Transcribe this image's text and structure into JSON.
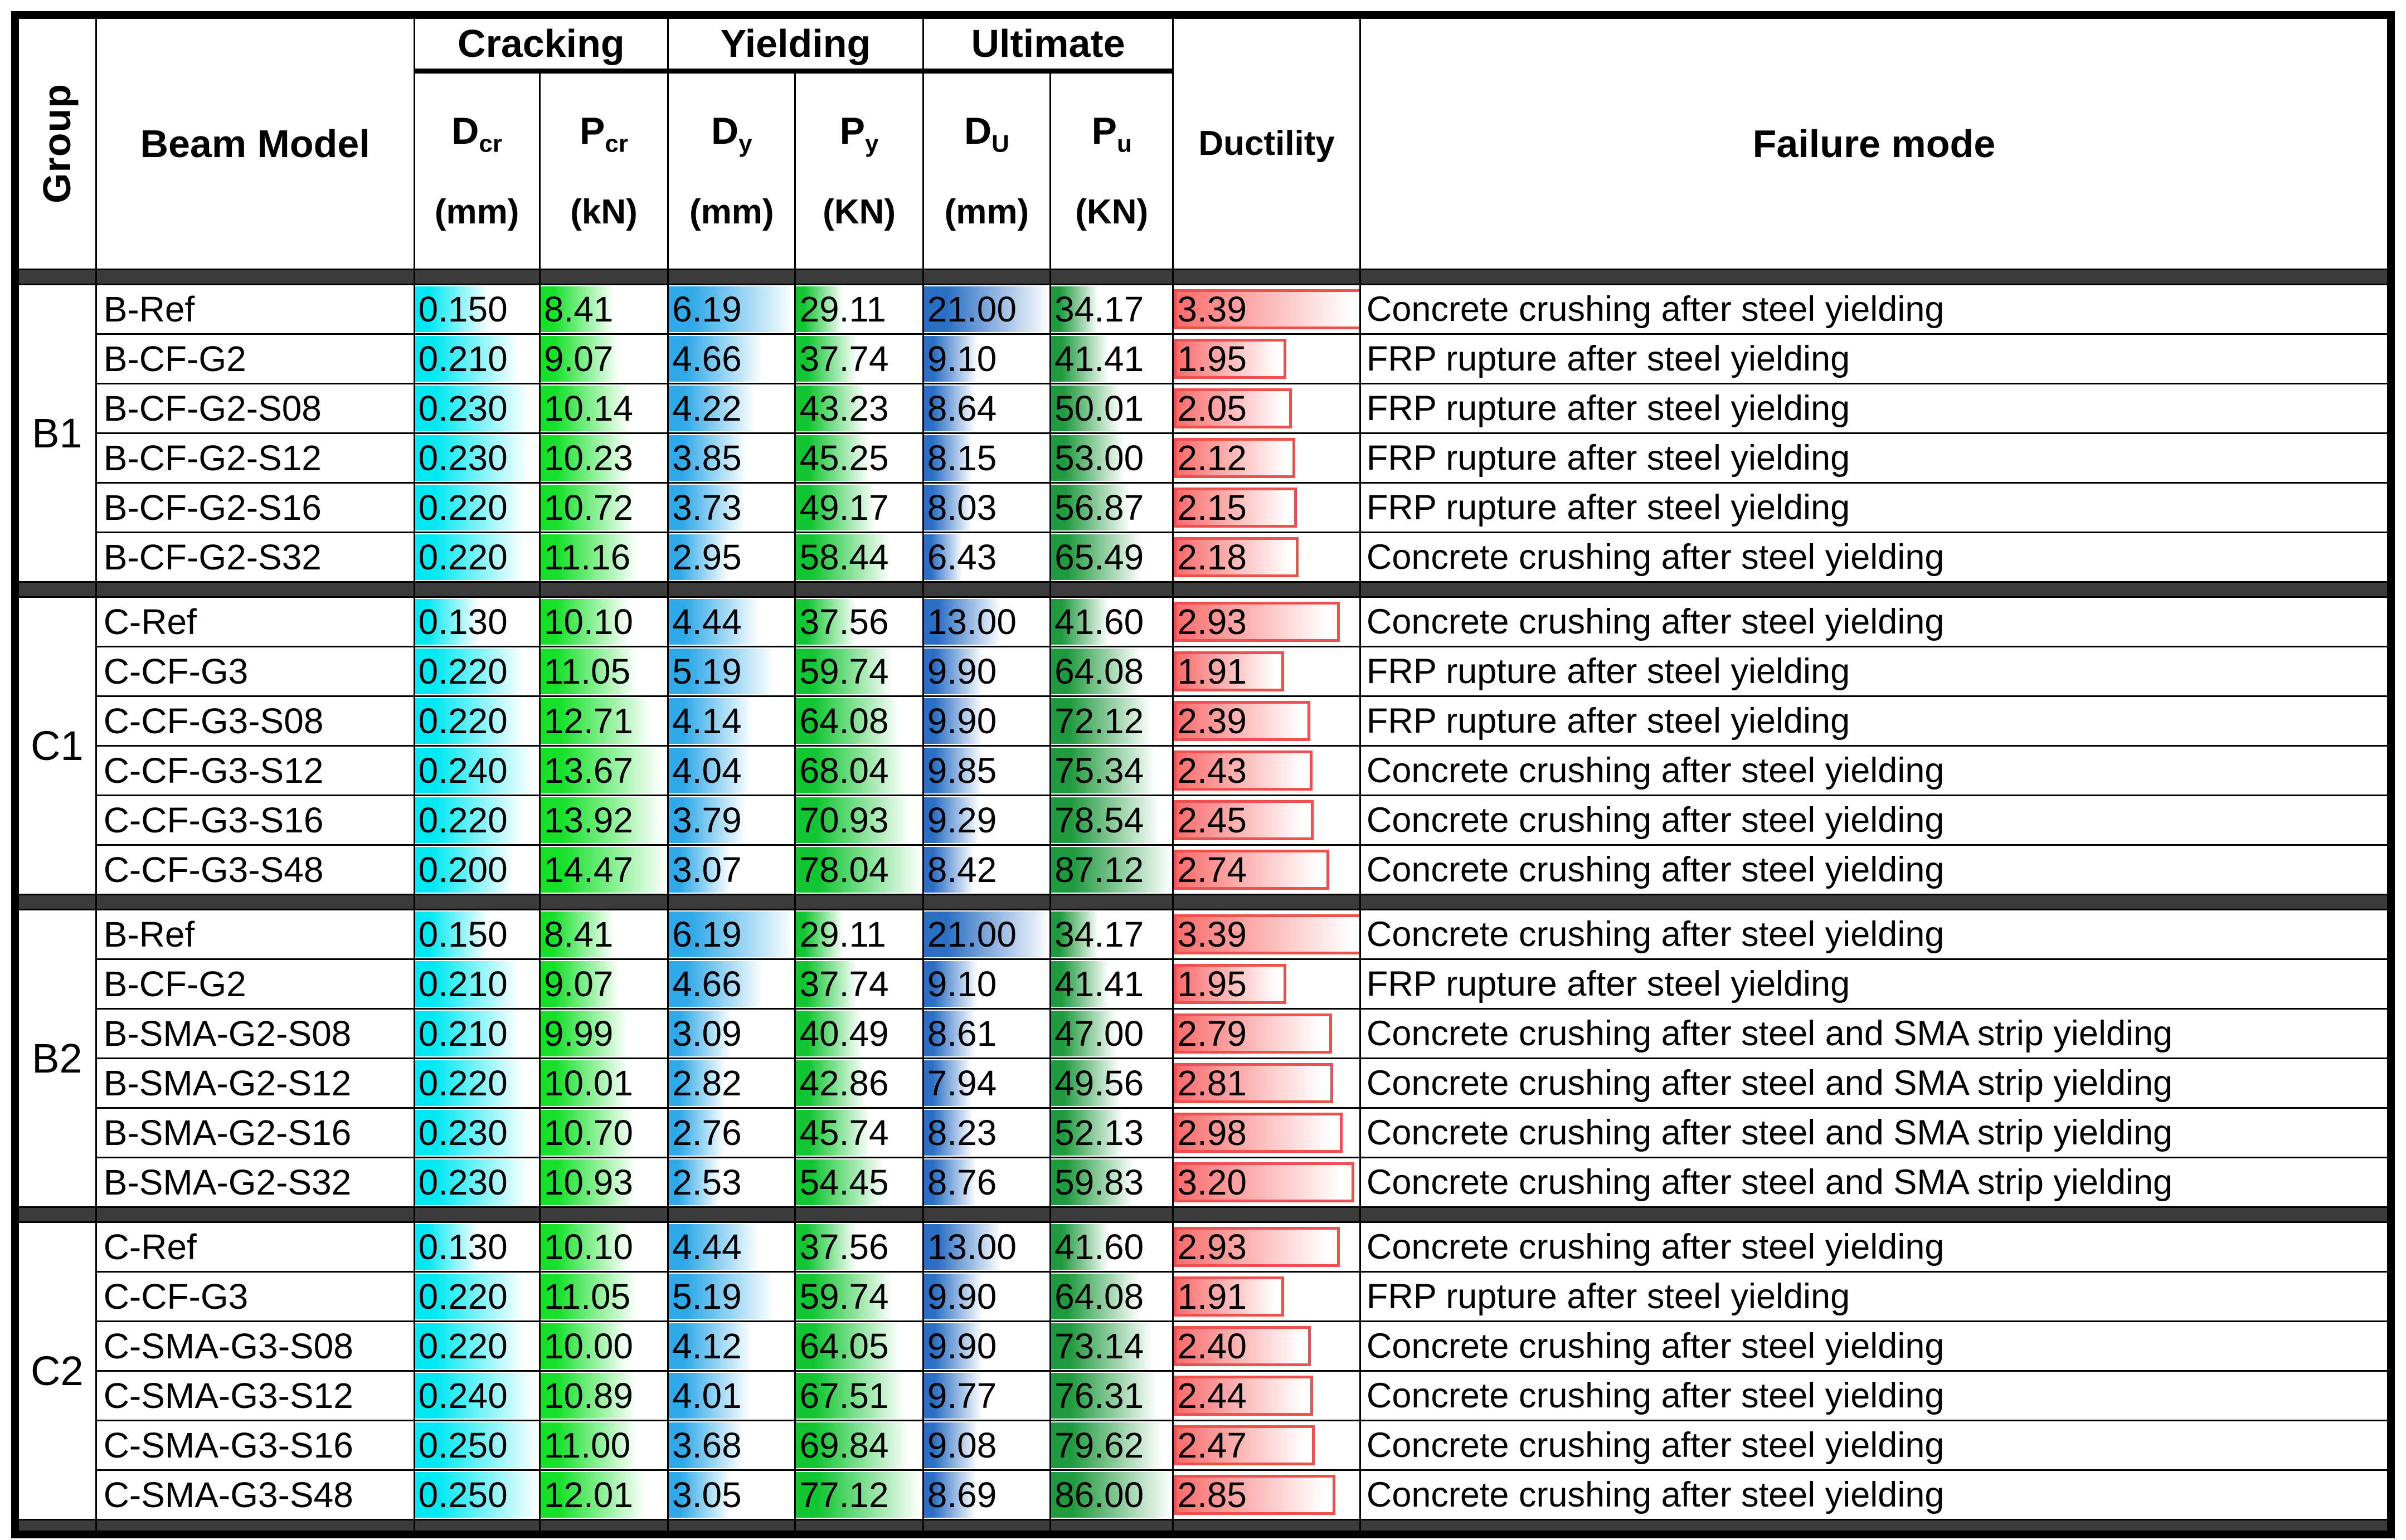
{
  "header": {
    "group": "Group",
    "beam_model": "Beam Model",
    "spans": [
      {
        "label": "Cracking"
      },
      {
        "label": "Yielding"
      },
      {
        "label": "Ultimate"
      }
    ],
    "sub_columns": [
      {
        "key": "dcr",
        "sym": "D",
        "sub": "cr",
        "unit": "(mm)"
      },
      {
        "key": "pcr",
        "sym": "P",
        "sub": "cr",
        "unit": "(kN)"
      },
      {
        "key": "dy",
        "sym": "D",
        "sub": "y",
        "unit": "(mm)"
      },
      {
        "key": "py",
        "sym": "P",
        "sub": "y",
        "unit": "(KN)"
      },
      {
        "key": "du",
        "sym": "D",
        "sub": "U",
        "unit": "(mm)"
      },
      {
        "key": "pu",
        "sym": "P",
        "sub": "u",
        "unit": "(KN)"
      }
    ],
    "ductility": "Ductility",
    "failure": "Failure mode"
  },
  "colors": {
    "dcr_bar": "#00e8f2",
    "pcr_bar": "#17e02b",
    "dy_bar": "#2fa9e8",
    "py_bar": "#12c532",
    "du_bar": "#2b6fc4",
    "pu_bar": "#1f9a3e",
    "ductility_fill": "#f96b6b",
    "ductility_border": "#ef4f4f",
    "separator": "#3b3b3b",
    "border": "#000000"
  },
  "chart_data": {
    "type": "table",
    "columns": [
      "Group",
      "Beam Model",
      "D_cr (mm)",
      "P_cr (kN)",
      "D_y (mm)",
      "P_y (KN)",
      "D_U (mm)",
      "P_u (KN)",
      "Ductility",
      "Failure mode"
    ],
    "groups": [
      {
        "name": "B1",
        "rows": [
          {
            "model": "B-Ref",
            "dcr": "0.150",
            "pcr": "8.41",
            "dy": "6.19",
            "py": "29.11",
            "du": "21.00",
            "pu": "34.17",
            "duct": "3.39",
            "failure": "Concrete crushing after steel yielding"
          },
          {
            "model": "B-CF-G2",
            "dcr": "0.210",
            "pcr": "9.07",
            "dy": "4.66",
            "py": "37.74",
            "du": "9.10",
            "pu": "41.41",
            "duct": "1.95",
            "failure": "FRP rupture after steel yielding"
          },
          {
            "model": "B-CF-G2-S08",
            "dcr": "0.230",
            "pcr": "10.14",
            "dy": "4.22",
            "py": "43.23",
            "du": "8.64",
            "pu": "50.01",
            "duct": "2.05",
            "failure": "FRP rupture after steel yielding"
          },
          {
            "model": "B-CF-G2-S12",
            "dcr": "0.230",
            "pcr": "10.23",
            "dy": "3.85",
            "py": "45.25",
            "du": "8.15",
            "pu": "53.00",
            "duct": "2.12",
            "failure": "FRP rupture after steel yielding"
          },
          {
            "model": "B-CF-G2-S16",
            "dcr": "0.220",
            "pcr": "10.72",
            "dy": "3.73",
            "py": "49.17",
            "du": "8.03",
            "pu": "56.87",
            "duct": "2.15",
            "failure": "FRP rupture after steel yielding"
          },
          {
            "model": "B-CF-G2-S32",
            "dcr": "0.220",
            "pcr": "11.16",
            "dy": "2.95",
            "py": "58.44",
            "du": "6.43",
            "pu": "65.49",
            "duct": "2.18",
            "failure": "Concrete crushing after steel yielding"
          }
        ]
      },
      {
        "name": "C1",
        "rows": [
          {
            "model": "C-Ref",
            "dcr": "0.130",
            "pcr": "10.10",
            "dy": "4.44",
            "py": "37.56",
            "du": "13.00",
            "pu": "41.60",
            "duct": "2.93",
            "failure": "Concrete crushing after steel yielding"
          },
          {
            "model": "C-CF-G3",
            "dcr": "0.220",
            "pcr": "11.05",
            "dy": "5.19",
            "py": "59.74",
            "du": "9.90",
            "pu": "64.08",
            "duct": "1.91",
            "failure": "FRP rupture after steel yielding"
          },
          {
            "model": "C-CF-G3-S08",
            "dcr": "0.220",
            "pcr": "12.71",
            "dy": "4.14",
            "py": "64.08",
            "du": "9.90",
            "pu": "72.12",
            "duct": "2.39",
            "failure": "FRP rupture after steel yielding"
          },
          {
            "model": "C-CF-G3-S12",
            "dcr": "0.240",
            "pcr": "13.67",
            "dy": "4.04",
            "py": "68.04",
            "du": "9.85",
            "pu": "75.34",
            "duct": "2.43",
            "failure": "Concrete crushing after steel yielding"
          },
          {
            "model": "C-CF-G3-S16",
            "dcr": "0.220",
            "pcr": "13.92",
            "dy": "3.79",
            "py": "70.93",
            "du": "9.29",
            "pu": "78.54",
            "duct": "2.45",
            "failure": "Concrete crushing after steel yielding"
          },
          {
            "model": "C-CF-G3-S48",
            "dcr": "0.200",
            "pcr": "14.47",
            "dy": "3.07",
            "py": "78.04",
            "du": "8.42",
            "pu": "87.12",
            "duct": "2.74",
            "failure": "Concrete crushing after steel yielding"
          }
        ]
      },
      {
        "name": "B2",
        "rows": [
          {
            "model": "B-Ref",
            "dcr": "0.150",
            "pcr": "8.41",
            "dy": "6.19",
            "py": "29.11",
            "du": "21.00",
            "pu": "34.17",
            "duct": "3.39",
            "failure": "Concrete crushing after steel yielding"
          },
          {
            "model": "B-CF-G2",
            "dcr": "0.210",
            "pcr": "9.07",
            "dy": "4.66",
            "py": "37.74",
            "du": "9.10",
            "pu": "41.41",
            "duct": "1.95",
            "failure": "FRP rupture after steel yielding"
          },
          {
            "model": "B-SMA-G2-S08",
            "dcr": "0.210",
            "pcr": "9.99",
            "dy": "3.09",
            "py": "40.49",
            "du": "8.61",
            "pu": "47.00",
            "duct": "2.79",
            "failure": "Concrete crushing after steel and SMA strip yielding"
          },
          {
            "model": "B-SMA-G2-S12",
            "dcr": "0.220",
            "pcr": "10.01",
            "dy": "2.82",
            "py": "42.86",
            "du": "7.94",
            "pu": "49.56",
            "duct": "2.81",
            "failure": "Concrete crushing after steel and SMA strip yielding"
          },
          {
            "model": "B-SMA-G2-S16",
            "dcr": "0.230",
            "pcr": "10.70",
            "dy": "2.76",
            "py": "45.74",
            "du": "8.23",
            "pu": "52.13",
            "duct": "2.98",
            "failure": "Concrete crushing after steel and SMA strip yielding"
          },
          {
            "model": "B-SMA-G2-S32",
            "dcr": "0.230",
            "pcr": "10.93",
            "dy": "2.53",
            "py": "54.45",
            "du": "8.76",
            "pu": "59.83",
            "duct": "3.20",
            "failure": "Concrete crushing after steel and SMA strip yielding"
          }
        ]
      },
      {
        "name": "C2",
        "rows": [
          {
            "model": "C-Ref",
            "dcr": "0.130",
            "pcr": "10.10",
            "dy": "4.44",
            "py": "37.56",
            "du": "13.00",
            "pu": "41.60",
            "duct": "2.93",
            "failure": "Concrete crushing after steel yielding"
          },
          {
            "model": "C-CF-G3",
            "dcr": "0.220",
            "pcr": "11.05",
            "dy": "5.19",
            "py": "59.74",
            "du": "9.90",
            "pu": "64.08",
            "duct": "1.91",
            "failure": "FRP rupture after steel yielding"
          },
          {
            "model": "C-SMA-G3-S08",
            "dcr": "0.220",
            "pcr": "10.00",
            "dy": "4.12",
            "py": "64.05",
            "du": "9.90",
            "pu": "73.14",
            "duct": "2.40",
            "failure": "Concrete crushing after steel yielding"
          },
          {
            "model": "C-SMA-G3-S12",
            "dcr": "0.240",
            "pcr": "10.89",
            "dy": "4.01",
            "py": "67.51",
            "du": "9.77",
            "pu": "76.31",
            "duct": "2.44",
            "failure": "Concrete crushing after steel yielding"
          },
          {
            "model": "C-SMA-G3-S16",
            "dcr": "0.250",
            "pcr": "11.00",
            "dy": "3.68",
            "py": "69.84",
            "du": "9.08",
            "pu": "79.62",
            "duct": "2.47",
            "failure": "Concrete crushing after steel yielding"
          },
          {
            "model": "C-SMA-G3-S48",
            "dcr": "0.250",
            "pcr": "12.01",
            "dy": "3.05",
            "py": "77.12",
            "du": "8.69",
            "pu": "86.00",
            "duct": "2.85",
            "failure": "Concrete crushing after steel yielding"
          }
        ]
      }
    ]
  }
}
